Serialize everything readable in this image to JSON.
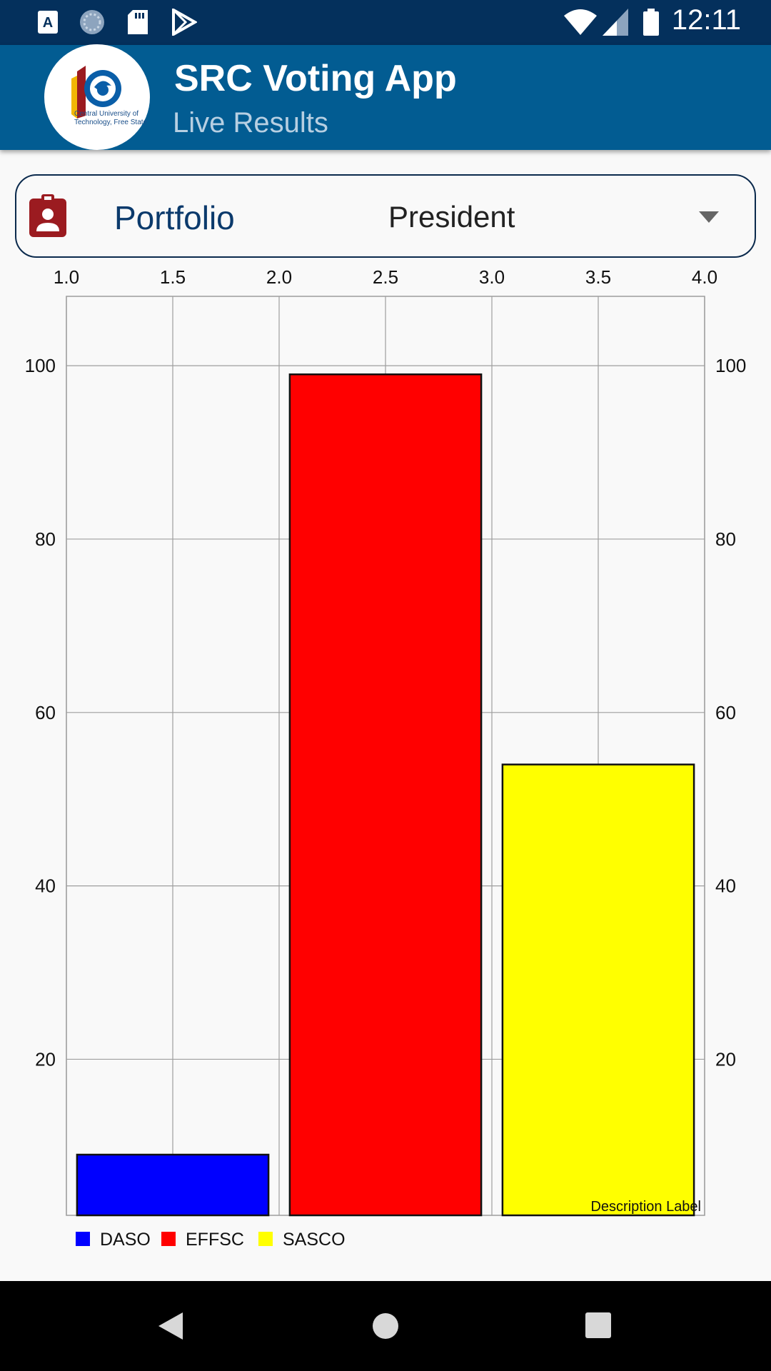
{
  "status_bar": {
    "time": "12:11",
    "icons": [
      "text-a-icon",
      "sync-icon",
      "sd-card-icon",
      "play-store-icon",
      "wifi-icon",
      "signal-icon",
      "battery-icon"
    ]
  },
  "app_bar": {
    "title": "SRC Voting App",
    "subtitle": "Live Results",
    "logo_text_line1": "Central University of",
    "logo_text_line2": "Technology, Free State"
  },
  "portfolio": {
    "label": "Portfolio",
    "selected": "President"
  },
  "colors": {
    "status_bar": "#04305c",
    "app_bar": "#025c92",
    "portfolio_icon": "#9b1b20"
  },
  "chart_data": {
    "type": "bar",
    "x_ticks": [
      "1.0",
      "1.5",
      "2.0",
      "2.5",
      "3.0",
      "3.5",
      "4.0"
    ],
    "x_range": [
      1.0,
      4.0
    ],
    "y_ticks": [
      "20",
      "40",
      "60",
      "80",
      "100"
    ],
    "y_range": [
      2,
      108
    ],
    "grid": true,
    "series": [
      {
        "name": "DASO",
        "x": 1.5,
        "value": 9,
        "color": "#0000ff"
      },
      {
        "name": "EFFSC",
        "x": 2.5,
        "value": 99,
        "color": "#ff0000"
      },
      {
        "name": "SASCO",
        "x": 3.5,
        "value": 54,
        "color": "#ffff00"
      }
    ],
    "description": "Description Label",
    "legend_position": "bottom-left"
  }
}
